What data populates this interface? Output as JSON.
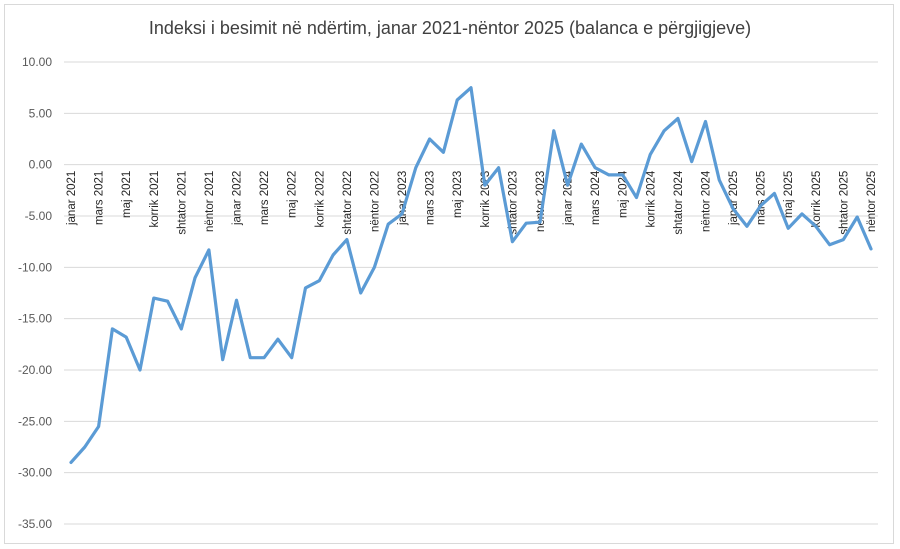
{
  "chart_data": {
    "type": "line",
    "title": "Indeksi i besimit në ndërtim, janar 2021-nëntor 2025 (balanca e përgjigjeve)",
    "xlabel": "",
    "ylabel": "",
    "ylim": [
      -35,
      10
    ],
    "yticks": [
      "10.00",
      "5.00",
      "0.00",
      "-5.00",
      "-10.00",
      "-15.00",
      "-20.00",
      "-25.00",
      "-30.00",
      "-35.00"
    ],
    "ytick_values": [
      10,
      5,
      0,
      -5,
      -10,
      -15,
      -20,
      -25,
      -30,
      -35
    ],
    "grid": true,
    "legend": "none",
    "line_color": "#5b9bd5",
    "grid_color": "#d9d9d9",
    "x_labels": [
      "janar 2021",
      "mars 2021",
      "maj 2021",
      "korrik 2021",
      "shtator 2021",
      "nëntor 2021",
      "janar 2022",
      "mars 2022",
      "maj 2022",
      "korrik 2022",
      "shtator 2022",
      "nëntor 2022",
      "janar 2023",
      "mars 2023",
      "maj 2023",
      "korrik 2023",
      "shtator 2023",
      "nëntor 2023",
      "janar 2024",
      "mars 2024",
      "maj 2024",
      "korrik 2024",
      "shtator 2024",
      "nëntor 2024",
      "janar 2025",
      "mars 2025",
      "maj 2025",
      "korrik 2025",
      "shtator 2025",
      "nëntor 2025"
    ],
    "series": [
      {
        "values": [
          -29.0,
          -27.5,
          -25.5,
          -16.0,
          -16.8,
          -20.0,
          -13.0,
          -13.3,
          -16.0,
          -11.0,
          -8.3,
          -19.0,
          -13.2,
          -18.8,
          -18.8,
          -17.0,
          -18.8,
          -12.0,
          -11.3,
          -8.8,
          -7.3,
          -12.5,
          -10.0,
          -5.8,
          -4.8,
          -0.3,
          2.5,
          1.2,
          6.3,
          7.5,
          -2.0,
          -0.3,
          -7.5,
          -5.7,
          -5.6,
          3.3,
          -2.0,
          2.0,
          -0.3,
          -1.0,
          -1.0,
          -3.2,
          1.0,
          3.3,
          4.5,
          0.3,
          4.2,
          -1.5,
          -4.3,
          -6.0,
          -4.0,
          -2.8,
          -6.2,
          -4.8,
          -6.0,
          -7.8,
          -7.3,
          -5.1,
          -8.2
        ]
      }
    ]
  }
}
